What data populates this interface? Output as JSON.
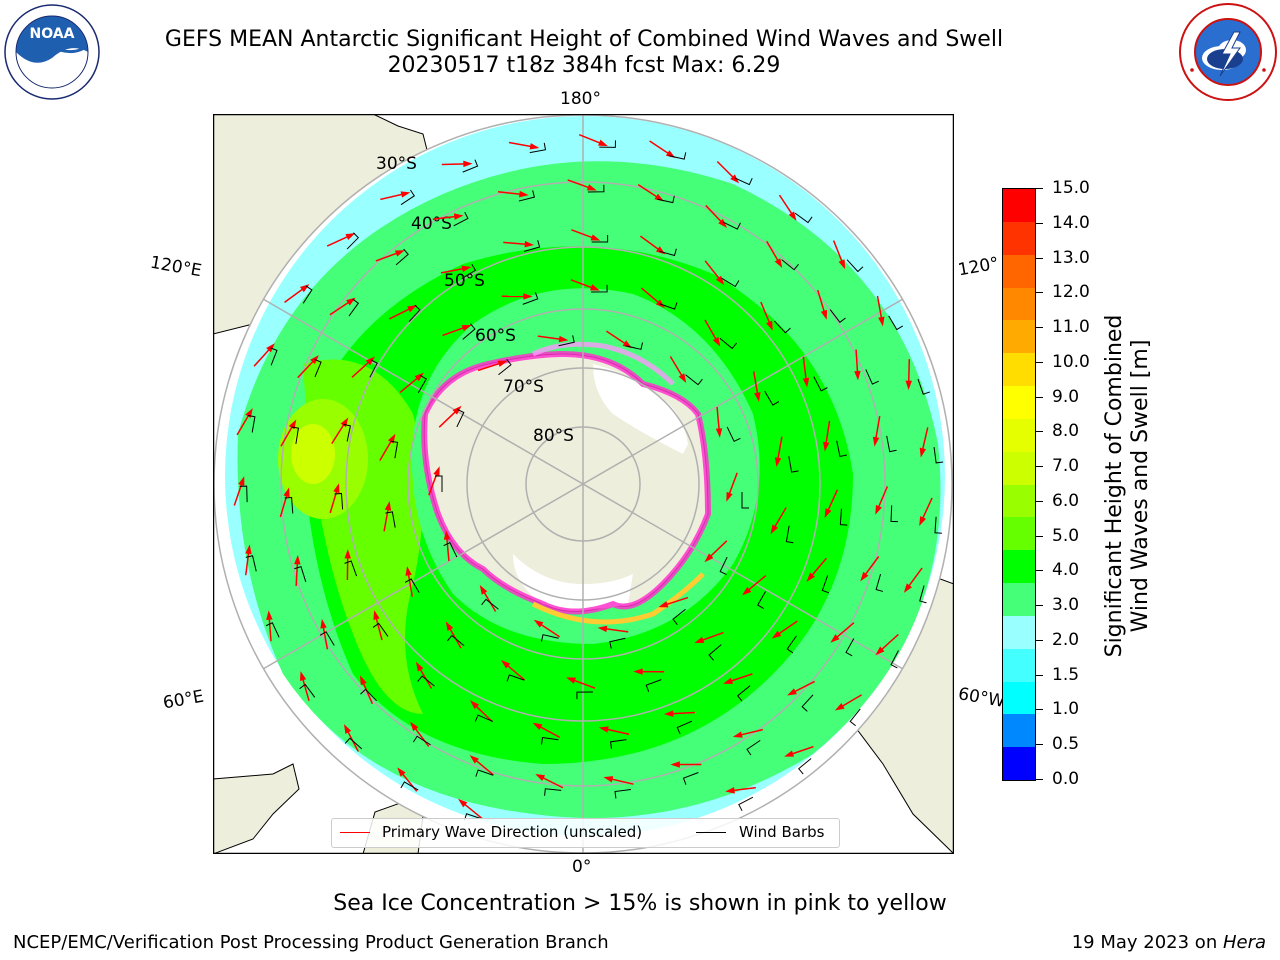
{
  "header": {
    "title_line1": "GEFS MEAN Antarctic Significant Height of Combined Wind Waves and Swell",
    "title_line2": "20230517 t18z 384h fcst   Max: 6.29"
  },
  "map": {
    "projection": "south-polar-stereographic",
    "longitude_labels": {
      "top": "180°",
      "bottom": "0°",
      "left_upper": "120°E",
      "left_lower": "60°E",
      "right_upper": "120°",
      "right_lower": "60°W"
    },
    "latitude_labels": [
      "30°S",
      "40°S",
      "50°S",
      "60°S",
      "70°S",
      "80°S"
    ],
    "colors": {
      "land": "#eeeedc",
      "ocean_nodata": "#ffffff",
      "ice_pink": "#ff33cc",
      "ice_yellow": "#ffcc33",
      "grid": "#b0b0b0",
      "arrow": "#ff0000",
      "barb": "#000000"
    }
  },
  "colorbar": {
    "label_line1": "Significant Height of Combined",
    "label_line2": "Wind Waves and Swell [m]",
    "ticks": [
      "15.0",
      "14.0",
      "13.0",
      "12.0",
      "11.0",
      "10.0",
      "9.0",
      "8.0",
      "7.0",
      "6.0",
      "5.0",
      "4.0",
      "3.0",
      "2.0",
      "1.5",
      "1.0",
      "0.5",
      "0.0"
    ],
    "segments": [
      "#ff0000",
      "#ff3300",
      "#ff6600",
      "#ff8800",
      "#ffaa00",
      "#ffdd00",
      "#ffff00",
      "#e6ff00",
      "#ccff00",
      "#99ff00",
      "#66ff00",
      "#00ff00",
      "#44ff77",
      "#99ffff",
      "#44ffff",
      "#00ffff",
      "#0088ff",
      "#0000ff"
    ]
  },
  "legend": {
    "primary_wave": "Primary Wave Direction (unscaled)",
    "wind_barbs": "Wind Barbs"
  },
  "caption": "Sea Ice Concentration > 15% is shown in pink to yellow",
  "footer": {
    "left": "NCEP/EMC/Verification Post Processing Product Generation Branch",
    "right_date": "19 May 2023 on ",
    "right_host": "Hera"
  }
}
